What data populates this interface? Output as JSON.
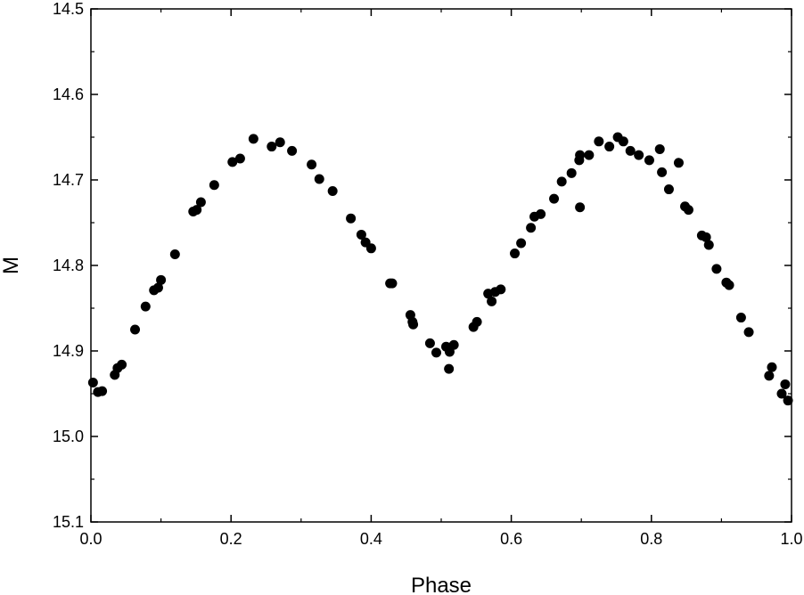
{
  "chart_data": {
    "type": "scatter",
    "title": "",
    "xlabel": "Phase",
    "ylabel": "M",
    "xlim": [
      0.0,
      1.0
    ],
    "ylim": [
      14.5,
      15.1
    ],
    "y_inverted": true,
    "grid": false,
    "marker_color": "#000000",
    "x_ticks": [
      0.0,
      0.2,
      0.4,
      0.6,
      0.8,
      1.0
    ],
    "x_tick_labels": [
      "0.0",
      "0.2",
      "0.4",
      "0.6",
      "0.8",
      "1.0"
    ],
    "y_ticks": [
      14.5,
      14.6,
      14.7,
      14.8,
      14.9,
      15.0,
      15.1
    ],
    "y_tick_labels": [
      "14.5",
      "14.6",
      "14.7",
      "14.8",
      "14.9",
      "15.0",
      "15.1"
    ],
    "points": [
      [
        0.003,
        14.937
      ],
      [
        0.01,
        14.948
      ],
      [
        0.016,
        14.947
      ],
      [
        0.034,
        14.928
      ],
      [
        0.038,
        14.92
      ],
      [
        0.044,
        14.916
      ],
      [
        0.063,
        14.875
      ],
      [
        0.078,
        14.848
      ],
      [
        0.09,
        14.829
      ],
      [
        0.096,
        14.826
      ],
      [
        0.1,
        14.817
      ],
      [
        0.12,
        14.787
      ],
      [
        0.146,
        14.737
      ],
      [
        0.151,
        14.735
      ],
      [
        0.157,
        14.726
      ],
      [
        0.176,
        14.706
      ],
      [
        0.202,
        14.679
      ],
      [
        0.213,
        14.675
      ],
      [
        0.232,
        14.652
      ],
      [
        0.258,
        14.661
      ],
      [
        0.27,
        14.656
      ],
      [
        0.287,
        14.666
      ],
      [
        0.315,
        14.682
      ],
      [
        0.326,
        14.699
      ],
      [
        0.345,
        14.713
      ],
      [
        0.371,
        14.745
      ],
      [
        0.386,
        14.764
      ],
      [
        0.392,
        14.773
      ],
      [
        0.4,
        14.78
      ],
      [
        0.427,
        14.821
      ],
      [
        0.43,
        14.821
      ],
      [
        0.456,
        14.858
      ],
      [
        0.459,
        14.866
      ],
      [
        0.46,
        14.869
      ],
      [
        0.484,
        14.891
      ],
      [
        0.493,
        14.902
      ],
      [
        0.507,
        14.895
      ],
      [
        0.511,
        14.921
      ],
      [
        0.512,
        14.901
      ],
      [
        0.518,
        14.893
      ],
      [
        0.546,
        14.872
      ],
      [
        0.551,
        14.866
      ],
      [
        0.567,
        14.833
      ],
      [
        0.572,
        14.842
      ],
      [
        0.577,
        14.831
      ],
      [
        0.585,
        14.828
      ],
      [
        0.605,
        14.786
      ],
      [
        0.614,
        14.774
      ],
      [
        0.628,
        14.756
      ],
      [
        0.633,
        14.743
      ],
      [
        0.642,
        14.74
      ],
      [
        0.661,
        14.722
      ],
      [
        0.672,
        14.702
      ],
      [
        0.686,
        14.692
      ],
      [
        0.697,
        14.677
      ],
      [
        0.698,
        14.671
      ],
      [
        0.698,
        14.732
      ],
      [
        0.711,
        14.671
      ],
      [
        0.725,
        14.655
      ],
      [
        0.74,
        14.661
      ],
      [
        0.752,
        14.65
      ],
      [
        0.76,
        14.655
      ],
      [
        0.77,
        14.666
      ],
      [
        0.782,
        14.671
      ],
      [
        0.797,
        14.677
      ],
      [
        0.812,
        14.664
      ],
      [
        0.815,
        14.691
      ],
      [
        0.825,
        14.711
      ],
      [
        0.839,
        14.68
      ],
      [
        0.848,
        14.731
      ],
      [
        0.853,
        14.735
      ],
      [
        0.872,
        14.765
      ],
      [
        0.878,
        14.767
      ],
      [
        0.882,
        14.776
      ],
      [
        0.893,
        14.804
      ],
      [
        0.907,
        14.82
      ],
      [
        0.911,
        14.823
      ],
      [
        0.928,
        14.861
      ],
      [
        0.939,
        14.878
      ],
      [
        0.968,
        14.929
      ],
      [
        0.972,
        14.919
      ],
      [
        0.986,
        14.95
      ],
      [
        0.991,
        14.939
      ],
      [
        0.995,
        14.958
      ]
    ]
  }
}
